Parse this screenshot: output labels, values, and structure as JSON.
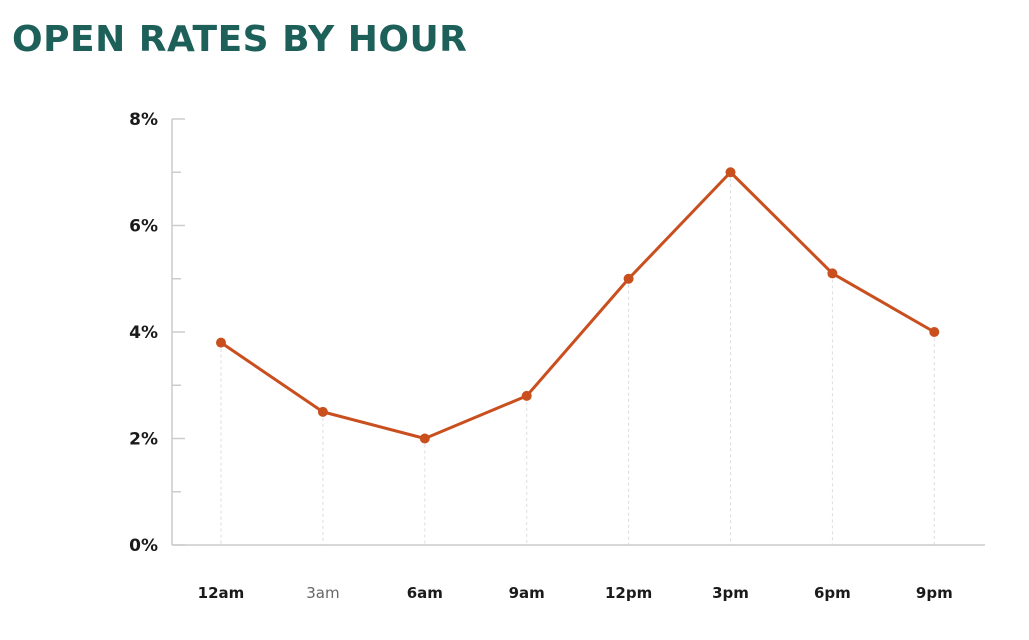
{
  "title": "OPEN RATES BY HOUR",
  "colors": {
    "title": "#1d5f59",
    "line": "#c94f1e",
    "axis": "#cccccc",
    "guide": "#dddddd",
    "tick_text": "#1a1a1a",
    "muted_tick_text": "#666666"
  },
  "chart_data": {
    "type": "line",
    "title": "OPEN RATES BY HOUR",
    "xlabel": "",
    "ylabel": "",
    "categories": [
      "12am",
      "3am",
      "6am",
      "9am",
      "12pm",
      "3pm",
      "6pm",
      "9pm"
    ],
    "series": [
      {
        "values": [
          3.8,
          2.5,
          2.0,
          2.8,
          5.0,
          7.0,
          5.1,
          4.0
        ]
      }
    ],
    "ylim": [
      0,
      8
    ],
    "y_ticks": [
      {
        "value": 0,
        "label": "0%"
      },
      {
        "value": 2,
        "label": "2%"
      },
      {
        "value": 4,
        "label": "4%"
      },
      {
        "value": 6,
        "label": "6%"
      },
      {
        "value": 8,
        "label": "8%"
      }
    ],
    "y_minor_ticks": [
      1,
      3,
      5,
      7
    ],
    "muted_categories": [
      "3am"
    ],
    "grid": false,
    "legend": "none"
  }
}
